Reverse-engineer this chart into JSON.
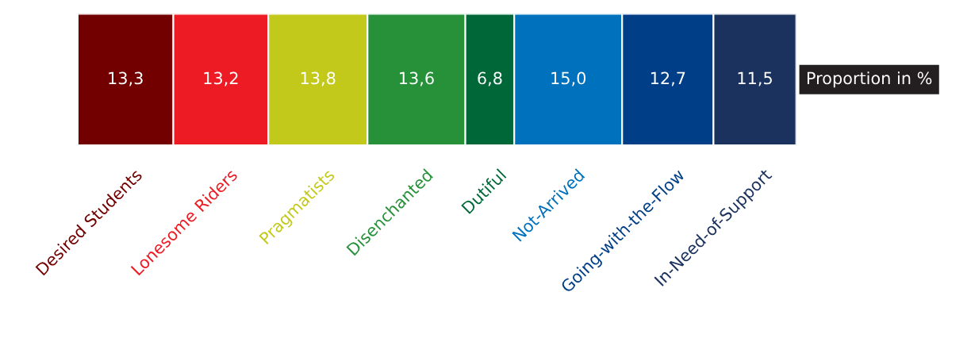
{
  "chart_data": {
    "type": "bar",
    "orientation": "horizontal",
    "stacked": true,
    "categories": [
      null
    ],
    "legend": false,
    "series": [
      {
        "name": "Desired Students",
        "color": "#730000",
        "values": [
          13.3
        ],
        "value_labels": [
          "13,3"
        ]
      },
      {
        "name": "Lonesome Riders",
        "color": "#ed1c24",
        "values": [
          13.2
        ],
        "value_labels": [
          "13,2"
        ]
      },
      {
        "name": "Pragmatists",
        "color": "#c3c91a",
        "values": [
          13.8
        ],
        "value_labels": [
          "13,8"
        ]
      },
      {
        "name": "Disenchanted",
        "color": "#27913a",
        "values": [
          13.6
        ],
        "value_labels": [
          "13,6"
        ]
      },
      {
        "name": "Dutiful",
        "color": "#006838",
        "values": [
          6.8
        ],
        "value_labels": [
          "6,8"
        ]
      },
      {
        "name": "Not-Arrived",
        "color": "#0071bc",
        "values": [
          15.0
        ],
        "value_labels": [
          "15,0"
        ]
      },
      {
        "name": "Going-with-the-Flow",
        "color": "#003f87",
        "values": [
          12.7
        ],
        "value_labels": [
          "12,7"
        ]
      },
      {
        "name": "In-Need-of-Support",
        "color": "#1b325e",
        "values": [
          11.5
        ],
        "value_labels": [
          "11,5"
        ]
      }
    ],
    "annotations": [
      "Proportion in %"
    ]
  }
}
